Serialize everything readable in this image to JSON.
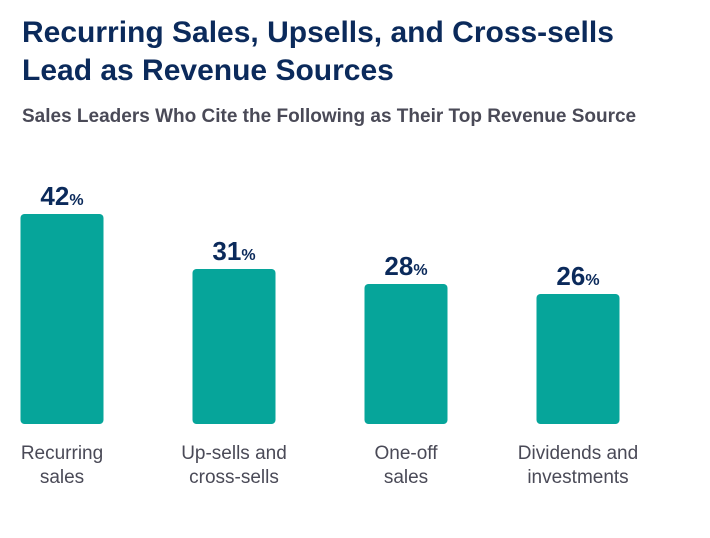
{
  "title_lines": [
    "Recurring Sales, Upsells, and Cross-sells",
    "Lead as Revenue Sources"
  ],
  "subtitle": "Sales Leaders Who Cite the Following as Their Top Revenue Source",
  "chart_data": {
    "type": "bar",
    "categories": [
      [
        "Recurring",
        "sales"
      ],
      [
        "Up-sells and",
        "cross-sells"
      ],
      [
        "One-off",
        "sales"
      ],
      [
        "Dividends and",
        "investments"
      ]
    ],
    "values": [
      42,
      31,
      28,
      26
    ],
    "value_suffix": "%",
    "ylim": [
      0,
      42
    ],
    "grid": false,
    "bar_color": "#06a59a",
    "label_color": "#0b2a5b"
  }
}
